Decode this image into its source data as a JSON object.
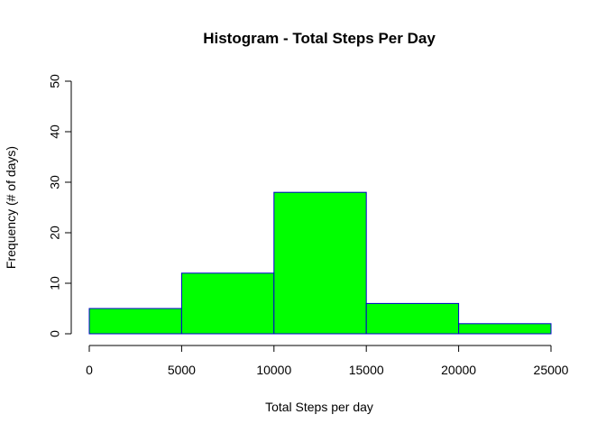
{
  "chart_data": {
    "type": "bar",
    "subtype": "histogram",
    "title": "Histogram - Total Steps Per Day",
    "xlabel": "Total Steps per day",
    "ylabel": "Frequency (# of days)",
    "bins": [
      {
        "start": 0,
        "end": 5000,
        "value": 5
      },
      {
        "start": 5000,
        "end": 10000,
        "value": 12
      },
      {
        "start": 10000,
        "end": 15000,
        "value": 28
      },
      {
        "start": 15000,
        "end": 20000,
        "value": 6
      },
      {
        "start": 20000,
        "end": 25000,
        "value": 2
      }
    ],
    "xlim": [
      0,
      25000
    ],
    "ylim": [
      0,
      50
    ],
    "xticks": [
      "0",
      "5000",
      "10000",
      "15000",
      "20000",
      "25000"
    ],
    "yticks": [
      "0",
      "10",
      "20",
      "30",
      "40",
      "50"
    ],
    "grid": false,
    "legend": "none",
    "colors": {
      "bar_fill": "#00ff00",
      "bar_border": "#0000cd"
    }
  }
}
